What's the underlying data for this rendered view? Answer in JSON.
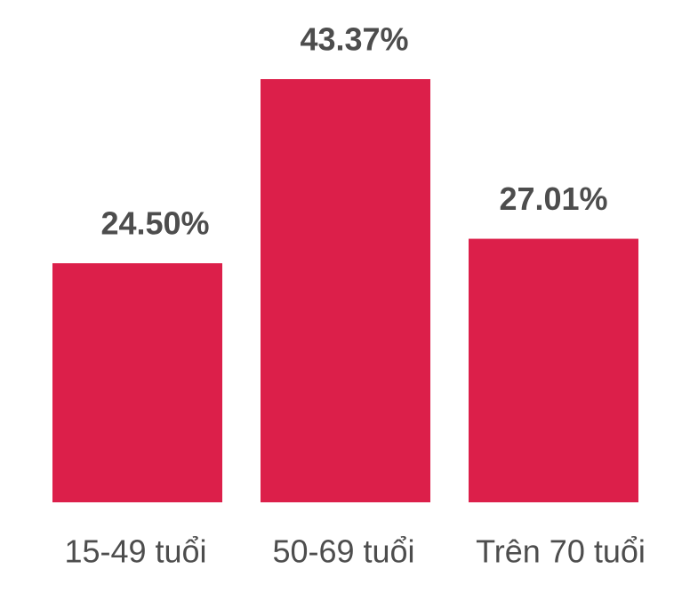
{
  "chart_data": {
    "type": "bar",
    "categories": [
      "15-49 tuổi",
      "50-69 tuổi",
      "Trên 70 tuổi"
    ],
    "values": [
      24.5,
      43.37,
      27.01
    ],
    "value_labels": [
      "24.50%",
      "43.37%",
      "27.01%"
    ],
    "color": "#dc1f4a"
  }
}
